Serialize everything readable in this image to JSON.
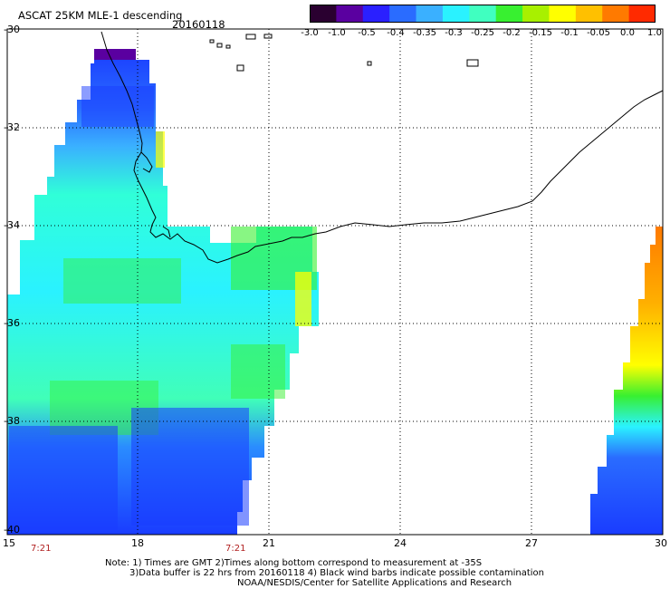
{
  "header": {
    "title": "ASCAT 25KM MLE-1 descending",
    "date": "20160118"
  },
  "colorbar": {
    "labels": [
      "-3.0",
      "-1.0",
      "-0.5",
      "-0.4",
      "-0.35",
      "-0.3",
      "-0.25",
      "-0.2",
      "-0.15",
      "-0.1",
      "-0.05",
      "0.0",
      "1.0"
    ],
    "colors": [
      "#2a0030",
      "#5a00a0",
      "#2a20ff",
      "#2a6cff",
      "#3ab0ff",
      "#2af2ff",
      "#40ffc0",
      "#38f030",
      "#a8f000",
      "#ffff00",
      "#ffc000",
      "#ff7a00",
      "#ff2a00"
    ]
  },
  "axes": {
    "lat_labels": [
      "-30",
      "-32",
      "-34",
      "-36",
      "-38",
      "-40"
    ],
    "lon_labels": [
      "15",
      "18",
      "21",
      "24",
      "27",
      "30"
    ],
    "times": [
      "7:21",
      "7:21"
    ]
  },
  "notes": {
    "line1": "Note: 1) Times are GMT 2)Times along bottom correspond to measurement at -35S",
    "line2": "3)Data buffer is 22 hrs from 20160118 4) Black wind barbs indicate possible contamination",
    "line3": "NOAA/NESDIS/Center for Satellite Applications and Research"
  }
}
